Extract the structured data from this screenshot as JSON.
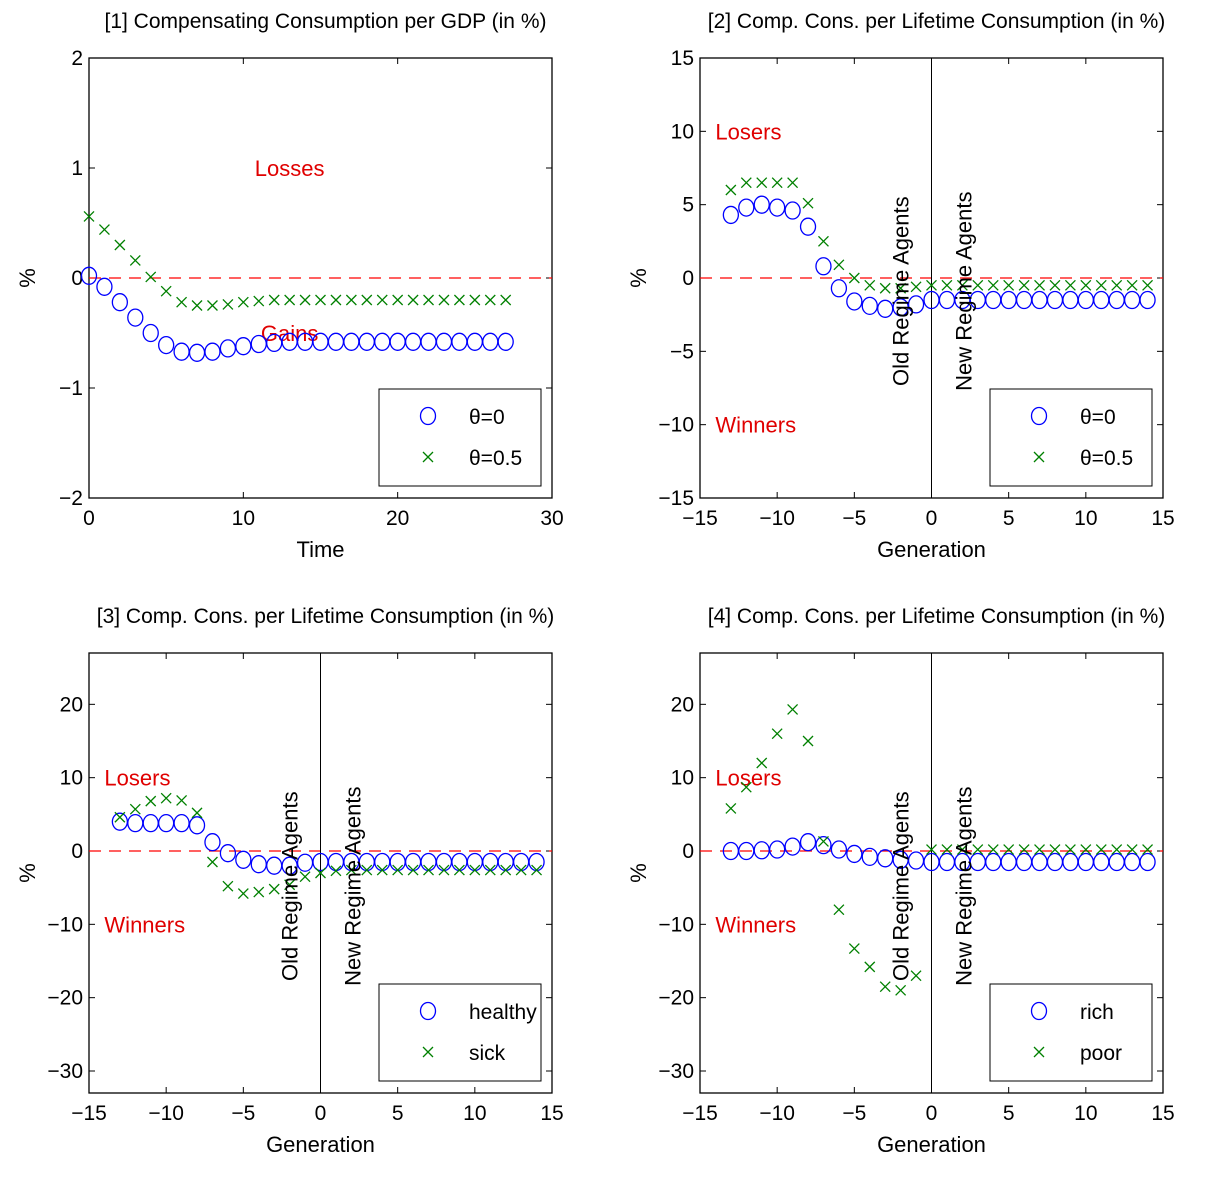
{
  "chart_data": [
    {
      "type": "scatter",
      "title": "[1] Compensating Consumption per GDP (in %)",
      "xlabel": "Time",
      "ylabel": "%",
      "xlim": [
        0,
        30
      ],
      "ylim": [
        -2,
        2
      ],
      "xticks": [
        0,
        10,
        20,
        30
      ],
      "yticks": [
        -2,
        -1,
        0,
        1,
        2
      ],
      "yticklabels": [
        "−2",
        "−1",
        "0",
        "1",
        "2"
      ],
      "xticklabels": [
        "0",
        "10",
        "20",
        "30"
      ],
      "zero_line": true,
      "vline": null,
      "annotations": [
        {
          "text": "Losses",
          "x": 13,
          "y": 1.0
        },
        {
          "text": "Gains",
          "x": 13,
          "y": -0.5
        }
      ],
      "regime_labels": [],
      "legend_placement": "bottom-right",
      "series": [
        {
          "name": "θ=0",
          "marker": "circle",
          "color": "#0000ff",
          "x": [
            0,
            1,
            2,
            3,
            4,
            5,
            6,
            7,
            8,
            9,
            10,
            11,
            12,
            13,
            14,
            15,
            16,
            17,
            18,
            19,
            20,
            21,
            22,
            23,
            24,
            25,
            26,
            27
          ],
          "y": [
            0.02,
            -0.08,
            -0.22,
            -0.36,
            -0.5,
            -0.61,
            -0.67,
            -0.68,
            -0.67,
            -0.64,
            -0.62,
            -0.6,
            -0.59,
            -0.58,
            -0.58,
            -0.58,
            -0.58,
            -0.58,
            -0.58,
            -0.58,
            -0.58,
            -0.58,
            -0.58,
            -0.58,
            -0.58,
            -0.58,
            -0.58,
            -0.58
          ]
        },
        {
          "name": "θ=0.5",
          "marker": "cross",
          "color": "#008000",
          "x": [
            0,
            1,
            2,
            3,
            4,
            5,
            6,
            7,
            8,
            9,
            10,
            11,
            12,
            13,
            14,
            15,
            16,
            17,
            18,
            19,
            20,
            21,
            22,
            23,
            24,
            25,
            26,
            27
          ],
          "y": [
            0.56,
            0.44,
            0.3,
            0.16,
            0.01,
            -0.12,
            -0.22,
            -0.25,
            -0.25,
            -0.24,
            -0.22,
            -0.21,
            -0.2,
            -0.2,
            -0.2,
            -0.2,
            -0.2,
            -0.2,
            -0.2,
            -0.2,
            -0.2,
            -0.2,
            -0.2,
            -0.2,
            -0.2,
            -0.2,
            -0.2,
            -0.2
          ]
        }
      ]
    },
    {
      "type": "scatter",
      "title": "[2] Comp. Cons. per Lifetime Consumption (in %)",
      "xlabel": "Generation",
      "ylabel": "%",
      "xlim": [
        -15,
        15
      ],
      "ylim": [
        -15,
        15
      ],
      "xticks": [
        -15,
        -10,
        -5,
        0,
        5,
        10,
        15
      ],
      "yticks": [
        -15,
        -10,
        -5,
        0,
        5,
        10,
        15
      ],
      "xticklabels": [
        "−15",
        "−10",
        "−5",
        "0",
        "5",
        "10",
        "15"
      ],
      "yticklabels": [
        "−15",
        "−10",
        "−5",
        "0",
        "5",
        "10",
        "15"
      ],
      "zero_line": true,
      "vline": 0,
      "annotations": [
        {
          "text": "Losers",
          "x": -14,
          "y": 10
        },
        {
          "text": "Winners",
          "x": -14,
          "y": -10
        }
      ],
      "regime_labels": [
        "Old Regime Agents",
        "New Regime Agents"
      ],
      "legend_placement": "bottom-right",
      "series": [
        {
          "name": "θ=0",
          "marker": "circle",
          "color": "#0000ff",
          "x": [
            -13,
            -12,
            -11,
            -10,
            -9,
            -8,
            -7,
            -6,
            -5,
            -4,
            -3,
            -2,
            -1,
            0,
            1,
            2,
            3,
            4,
            5,
            6,
            7,
            8,
            9,
            10,
            11,
            12,
            13,
            14
          ],
          "y": [
            4.3,
            4.8,
            5.0,
            4.8,
            4.6,
            3.5,
            0.8,
            -0.7,
            -1.6,
            -1.9,
            -2.1,
            -2.0,
            -1.8,
            -1.5,
            -1.5,
            -1.5,
            -1.5,
            -1.5,
            -1.5,
            -1.5,
            -1.5,
            -1.5,
            -1.5,
            -1.5,
            -1.5,
            -1.5,
            -1.5,
            -1.5
          ]
        },
        {
          "name": "θ=0.5",
          "marker": "cross",
          "color": "#008000",
          "x": [
            -13,
            -12,
            -11,
            -10,
            -9,
            -8,
            -7,
            -6,
            -5,
            -4,
            -3,
            -2,
            -1,
            0,
            1,
            2,
            3,
            4,
            5,
            6,
            7,
            8,
            9,
            10,
            11,
            12,
            13,
            14
          ],
          "y": [
            6.0,
            6.5,
            6.5,
            6.5,
            6.5,
            5.1,
            2.5,
            0.9,
            0.0,
            -0.5,
            -0.7,
            -0.7,
            -0.6,
            -0.5,
            -0.5,
            -0.5,
            -0.5,
            -0.5,
            -0.5,
            -0.5,
            -0.5,
            -0.5,
            -0.5,
            -0.5,
            -0.5,
            -0.5,
            -0.5,
            -0.5
          ]
        }
      ]
    },
    {
      "type": "scatter",
      "title": "[3] Comp. Cons. per Lifetime Consumption (in %)",
      "xlabel": "Generation",
      "ylabel": "%",
      "xlim": [
        -15,
        15
      ],
      "ylim": [
        -33,
        27
      ],
      "xticks": [
        -15,
        -10,
        -5,
        0,
        5,
        10,
        15
      ],
      "yticks": [
        -30,
        -20,
        -10,
        0,
        10,
        20
      ],
      "xticklabels": [
        "−15",
        "−10",
        "−5",
        "0",
        "5",
        "10",
        "15"
      ],
      "yticklabels": [
        "−30",
        "−20",
        "−10",
        "0",
        "10",
        "20"
      ],
      "zero_line": true,
      "vline": 0,
      "annotations": [
        {
          "text": "Losers",
          "x": -14,
          "y": 10
        },
        {
          "text": "Winners",
          "x": -14,
          "y": -10
        }
      ],
      "regime_labels": [
        "Old Regime Agents",
        "New Regime Agents"
      ],
      "legend_placement": "bottom-right",
      "series": [
        {
          "name": "healthy",
          "marker": "circle",
          "color": "#0000ff",
          "x": [
            -13,
            -12,
            -11,
            -10,
            -9,
            -8,
            -7,
            -6,
            -5,
            -4,
            -3,
            -2,
            -1,
            0,
            1,
            2,
            3,
            4,
            5,
            6,
            7,
            8,
            9,
            10,
            11,
            12,
            13,
            14
          ],
          "y": [
            4.0,
            3.8,
            3.8,
            3.8,
            3.8,
            3.5,
            1.2,
            -0.3,
            -1.2,
            -1.8,
            -2.0,
            -2.0,
            -1.6,
            -1.5,
            -1.5,
            -1.5,
            -1.5,
            -1.5,
            -1.5,
            -1.5,
            -1.5,
            -1.5,
            -1.5,
            -1.5,
            -1.5,
            -1.5,
            -1.5,
            -1.5
          ]
        },
        {
          "name": "sick",
          "marker": "cross",
          "color": "#008000",
          "x": [
            -13,
            -12,
            -11,
            -10,
            -9,
            -8,
            -7,
            -6,
            -5,
            -4,
            -3,
            -2,
            -1,
            0,
            1,
            2,
            3,
            4,
            5,
            6,
            7,
            8,
            9,
            10,
            11,
            12,
            13,
            14
          ],
          "y": [
            4.6,
            5.7,
            6.8,
            7.2,
            6.9,
            5.2,
            -1.5,
            -4.8,
            -5.8,
            -5.6,
            -5.2,
            -4.6,
            -3.5,
            -3.0,
            -2.7,
            -2.6,
            -2.6,
            -2.6,
            -2.6,
            -2.6,
            -2.6,
            -2.6,
            -2.6,
            -2.6,
            -2.6,
            -2.6,
            -2.6,
            -2.6
          ]
        }
      ]
    },
    {
      "type": "scatter",
      "title": "[4] Comp. Cons. per Lifetime Consumption (in %)",
      "xlabel": "Generation",
      "ylabel": "%",
      "xlim": [
        -15,
        15
      ],
      "ylim": [
        -33,
        27
      ],
      "xticks": [
        -15,
        -10,
        -5,
        0,
        5,
        10,
        15
      ],
      "yticks": [
        -30,
        -20,
        -10,
        0,
        10,
        20
      ],
      "xticklabels": [
        "−15",
        "−10",
        "−5",
        "0",
        "5",
        "10",
        "15"
      ],
      "yticklabels": [
        "−30",
        "−20",
        "−10",
        "0",
        "10",
        "20"
      ],
      "zero_line": true,
      "vline": 0,
      "annotations": [
        {
          "text": "Losers",
          "x": -14,
          "y": 10
        },
        {
          "text": "Winners",
          "x": -14,
          "y": -10
        }
      ],
      "regime_labels": [
        "Old Regime Agents",
        "New Regime Agents"
      ],
      "legend_placement": "bottom-right",
      "series": [
        {
          "name": "rich",
          "marker": "circle",
          "color": "#0000ff",
          "x": [
            -13,
            -12,
            -11,
            -10,
            -9,
            -8,
            -7,
            -6,
            -5,
            -4,
            -3,
            -2,
            -1,
            0,
            1,
            2,
            3,
            4,
            5,
            6,
            7,
            8,
            9,
            10,
            11,
            12,
            13,
            14
          ],
          "y": [
            0.0,
            0.0,
            0.1,
            0.2,
            0.6,
            1.2,
            0.8,
            0.2,
            -0.4,
            -0.8,
            -1.0,
            -1.2,
            -1.3,
            -1.5,
            -1.5,
            -1.5,
            -1.5,
            -1.5,
            -1.5,
            -1.5,
            -1.5,
            -1.5,
            -1.5,
            -1.5,
            -1.5,
            -1.5,
            -1.5,
            -1.5
          ]
        },
        {
          "name": "poor",
          "marker": "cross",
          "color": "#008000",
          "x": [
            -13,
            -12,
            -11,
            -10,
            -9,
            -8,
            -7,
            -6,
            -5,
            -4,
            -3,
            -2,
            -1,
            0,
            1,
            2,
            3,
            4,
            5,
            6,
            7,
            8,
            9,
            10,
            11,
            12,
            13,
            14
          ],
          "y": [
            5.8,
            8.7,
            12.0,
            16.0,
            19.3,
            15.0,
            1.3,
            -8.0,
            -13.3,
            -15.8,
            -18.5,
            -19.0,
            -17.0,
            0.2,
            0.2,
            0.2,
            0.2,
            0.2,
            0.2,
            0.2,
            0.2,
            0.2,
            0.2,
            0.2,
            0.2,
            0.2,
            0.2,
            0.2
          ]
        }
      ]
    }
  ]
}
